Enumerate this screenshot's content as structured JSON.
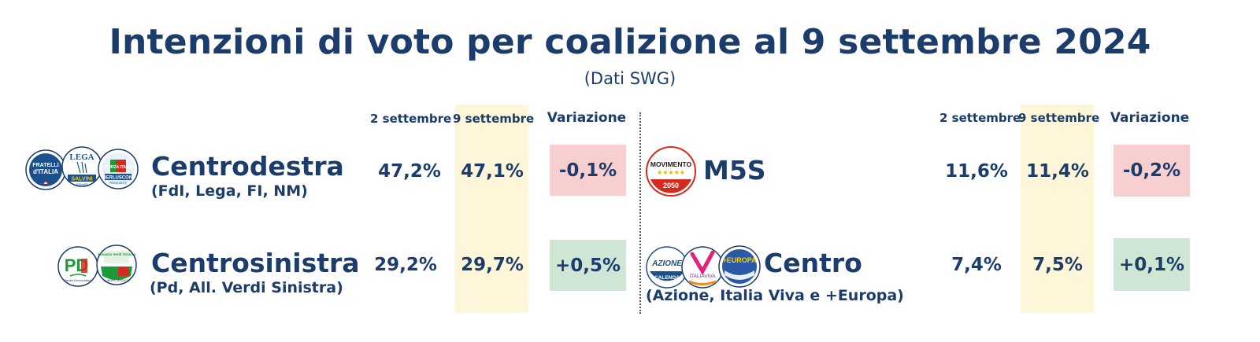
{
  "header": {
    "title": "Intenzioni di voto per coalizione al 9 settembre 2024",
    "subtitle": "(Dati SWG)"
  },
  "columns": {
    "prev": "2 settembre",
    "curr": "9 settembre",
    "change": "Variazione"
  },
  "chart_data": {
    "type": "table",
    "title": "Intenzioni di voto per coalizione al 9 settembre 2024",
    "subtitle": "(Dati SWG)",
    "columns": [
      "2 settembre",
      "9 settembre",
      "Variazione"
    ],
    "rows": [
      {
        "name": "Centrodestra",
        "members": "(FdI, Lega, FI, NM)",
        "prev": "47,2%",
        "curr": "47,1%",
        "change": "-0,1%",
        "prev_value": 47.2,
        "curr_value": 47.1,
        "change_value": -0.1
      },
      {
        "name": "Centrosinistra",
        "members": "(Pd, All. Verdi Sinistra)",
        "prev": "29,2%",
        "curr": "29,7%",
        "change": "+0,5%",
        "prev_value": 29.2,
        "curr_value": 29.7,
        "change_value": 0.5
      },
      {
        "name": "M5S",
        "members": "",
        "prev": "11,6%",
        "curr": "11,4%",
        "change": "-0,2%",
        "prev_value": 11.6,
        "curr_value": 11.4,
        "change_value": -0.2
      },
      {
        "name": "Centro",
        "members": "(Azione, Italia Viva e +Europa)",
        "prev": "7,4%",
        "curr": "7,5%",
        "change": "+0,1%",
        "prev_value": 7.4,
        "curr_value": 7.5,
        "change_value": 0.1
      }
    ],
    "colors": {
      "text": "#1c3d6b",
      "highlight": "#fdf6d8",
      "negative": "#f7cfd1",
      "positive": "#cfe6d5"
    }
  },
  "logos": {
    "fdi": {
      "line1": "FRATELLI",
      "line2": "d'ITALIA"
    },
    "lega": {
      "top": "LEGA",
      "bottom": "SALVINI",
      "tiny": "PREMIER"
    },
    "fi": {
      "top": "FORZA ITALIA",
      "bottom": "BERLUSCONI",
      "tiny": "PRESIDENTE"
    },
    "pd": {
      "main": "PD",
      "small": "Partito Democratico"
    },
    "avs": {
      "top": "Alleanza Verdi Sinistra",
      "bottom": "EUROPA VERDE SI"
    },
    "m5s": {
      "top": "MOVIMENTO",
      "bottom": "2050"
    },
    "azione": {
      "top": "AZIONE",
      "bottom": "CALENDA"
    },
    "iv": {
      "main": "ITALIAVIVA"
    },
    "eu": {
      "main": "+EUROPA"
    }
  },
  "icons": [
    "fdi-logo-icon",
    "lega-logo-icon",
    "forza-italia-logo-icon",
    "pd-logo-icon",
    "avs-logo-icon",
    "m5s-logo-icon",
    "azione-logo-icon",
    "italia-viva-logo-icon",
    "piu-europa-logo-icon"
  ]
}
